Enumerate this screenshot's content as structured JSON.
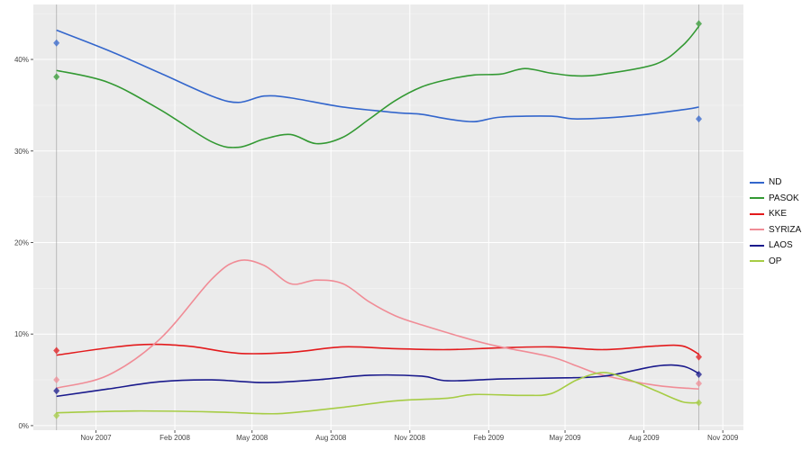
{
  "chart_data": {
    "type": "line",
    "title": "",
    "xlabel": "",
    "ylabel": "",
    "x_ticks": [
      "Nov 2007",
      "Feb 2008",
      "May 2008",
      "Aug 2008",
      "Nov 2008",
      "Feb 2009",
      "May 2009",
      "Aug 2009",
      "Nov 2009"
    ],
    "x_tick_dates": [
      "2007-11-01",
      "2008-02-01",
      "2008-05-01",
      "2008-08-01",
      "2008-11-01",
      "2009-02-01",
      "2009-05-01",
      "2009-08-01",
      "2009-11-01"
    ],
    "y_ticks": [
      "0%",
      "10%",
      "20%",
      "30%",
      "40%"
    ],
    "y_tick_values": [
      0,
      10,
      20,
      30,
      40
    ],
    "ylim": [
      -0.5,
      46
    ],
    "xlim": [
      "2007-08-20",
      "2009-11-25"
    ],
    "grid": true,
    "legend_position": "right",
    "election_dates": [
      "2007-09-16",
      "2009-10-04"
    ],
    "series": [
      {
        "name": "ND",
        "color": "#3366cc",
        "trend": [
          [
            "2007-09-16",
            43.2
          ],
          [
            "2007-11-15",
            41
          ],
          [
            "2008-01-15",
            38.5
          ],
          [
            "2008-03-15",
            36
          ],
          [
            "2008-04-15",
            35.3
          ],
          [
            "2008-05-15",
            36
          ],
          [
            "2008-06-15",
            35.8
          ],
          [
            "2008-08-15",
            34.8
          ],
          [
            "2008-10-15",
            34.2
          ],
          [
            "2008-11-15",
            34
          ],
          [
            "2008-12-15",
            33.5
          ],
          [
            "2009-01-15",
            33.2
          ],
          [
            "2009-02-15",
            33.7
          ],
          [
            "2009-04-15",
            33.8
          ],
          [
            "2009-05-15",
            33.5
          ],
          [
            "2009-07-15",
            33.8
          ],
          [
            "2009-09-15",
            34.5
          ],
          [
            "2009-10-04",
            34.8
          ]
        ],
        "results": [
          41.8,
          33.5
        ]
      },
      {
        "name": "PASOK",
        "color": "#339933",
        "trend": [
          [
            "2007-09-16",
            38.8
          ],
          [
            "2007-11-15",
            37.5
          ],
          [
            "2008-01-15",
            34.5
          ],
          [
            "2008-03-15",
            31
          ],
          [
            "2008-04-15",
            30.4
          ],
          [
            "2008-05-15",
            31.3
          ],
          [
            "2008-06-15",
            31.8
          ],
          [
            "2008-07-15",
            30.8
          ],
          [
            "2008-08-15",
            31.5
          ],
          [
            "2008-09-15",
            33.5
          ],
          [
            "2008-10-15",
            35.5
          ],
          [
            "2008-11-15",
            37
          ],
          [
            "2008-12-15",
            37.8
          ],
          [
            "2009-01-15",
            38.3
          ],
          [
            "2009-02-15",
            38.4
          ],
          [
            "2009-03-15",
            39
          ],
          [
            "2009-04-15",
            38.5
          ],
          [
            "2009-05-15",
            38.2
          ],
          [
            "2009-06-15",
            38.4
          ],
          [
            "2009-08-15",
            39.5
          ],
          [
            "2009-09-15",
            41.5
          ],
          [
            "2009-10-04",
            43.6
          ]
        ],
        "results": [
          38.1,
          43.9
        ]
      },
      {
        "name": "KKE",
        "color": "#e31a1c",
        "trend": [
          [
            "2007-09-16",
            7.7
          ],
          [
            "2007-12-15",
            8.8
          ],
          [
            "2008-02-15",
            8.7
          ],
          [
            "2008-04-15",
            7.9
          ],
          [
            "2008-06-15",
            8.0
          ],
          [
            "2008-08-15",
            8.6
          ],
          [
            "2008-10-15",
            8.4
          ],
          [
            "2008-12-15",
            8.3
          ],
          [
            "2009-02-15",
            8.5
          ],
          [
            "2009-04-15",
            8.6
          ],
          [
            "2009-06-15",
            8.3
          ],
          [
            "2009-08-15",
            8.7
          ],
          [
            "2009-09-15",
            8.7
          ],
          [
            "2009-10-04",
            7.8
          ]
        ],
        "results": [
          8.2,
          7.5
        ]
      },
      {
        "name": "SYRIZA",
        "color": "#f08c96",
        "trend": [
          [
            "2007-09-16",
            4.1
          ],
          [
            "2007-11-15",
            5.5
          ],
          [
            "2008-01-15",
            9.5
          ],
          [
            "2008-03-15",
            16
          ],
          [
            "2008-04-15",
            18
          ],
          [
            "2008-05-15",
            17.5
          ],
          [
            "2008-06-15",
            15.5
          ],
          [
            "2008-07-15",
            15.9
          ],
          [
            "2008-08-15",
            15.5
          ],
          [
            "2008-09-15",
            13.5
          ],
          [
            "2008-10-15",
            12
          ],
          [
            "2008-11-15",
            11
          ],
          [
            "2009-01-15",
            9.3
          ],
          [
            "2009-02-15",
            8.6
          ],
          [
            "2009-04-15",
            7.5
          ],
          [
            "2009-05-15",
            6.5
          ],
          [
            "2009-06-15",
            5.5
          ],
          [
            "2009-08-15",
            4.4
          ],
          [
            "2009-10-04",
            4.0
          ]
        ],
        "results": [
          5.0,
          4.6
        ]
      },
      {
        "name": "LAOS",
        "color": "#1a1a8c",
        "trend": [
          [
            "2007-09-16",
            3.2
          ],
          [
            "2007-11-15",
            4
          ],
          [
            "2008-01-15",
            4.8
          ],
          [
            "2008-03-15",
            5
          ],
          [
            "2008-05-15",
            4.7
          ],
          [
            "2008-07-15",
            5.0
          ],
          [
            "2008-09-15",
            5.5
          ],
          [
            "2008-11-15",
            5.4
          ],
          [
            "2008-12-15",
            4.9
          ],
          [
            "2009-02-15",
            5.1
          ],
          [
            "2009-04-15",
            5.2
          ],
          [
            "2009-06-15",
            5.4
          ],
          [
            "2009-08-15",
            6.5
          ],
          [
            "2009-09-15",
            6.5
          ],
          [
            "2009-10-04",
            5.7
          ]
        ],
        "results": [
          3.8,
          5.6
        ]
      },
      {
        "name": "OP",
        "color": "#a6cc44",
        "trend": [
          [
            "2007-09-16",
            1.4
          ],
          [
            "2007-12-15",
            1.6
          ],
          [
            "2008-03-15",
            1.5
          ],
          [
            "2008-05-15",
            1.3
          ],
          [
            "2008-06-15",
            1.4
          ],
          [
            "2008-08-15",
            2.0
          ],
          [
            "2008-10-15",
            2.7
          ],
          [
            "2008-12-15",
            3.0
          ],
          [
            "2009-01-15",
            3.4
          ],
          [
            "2009-03-15",
            3.3
          ],
          [
            "2009-04-15",
            3.5
          ],
          [
            "2009-05-15",
            5.0
          ],
          [
            "2009-06-15",
            5.8
          ],
          [
            "2009-07-15",
            5.0
          ],
          [
            "2009-08-15",
            3.8
          ],
          [
            "2009-09-15",
            2.6
          ],
          [
            "2009-10-04",
            2.5
          ]
        ],
        "results": [
          1.1,
          2.5
        ]
      }
    ]
  }
}
